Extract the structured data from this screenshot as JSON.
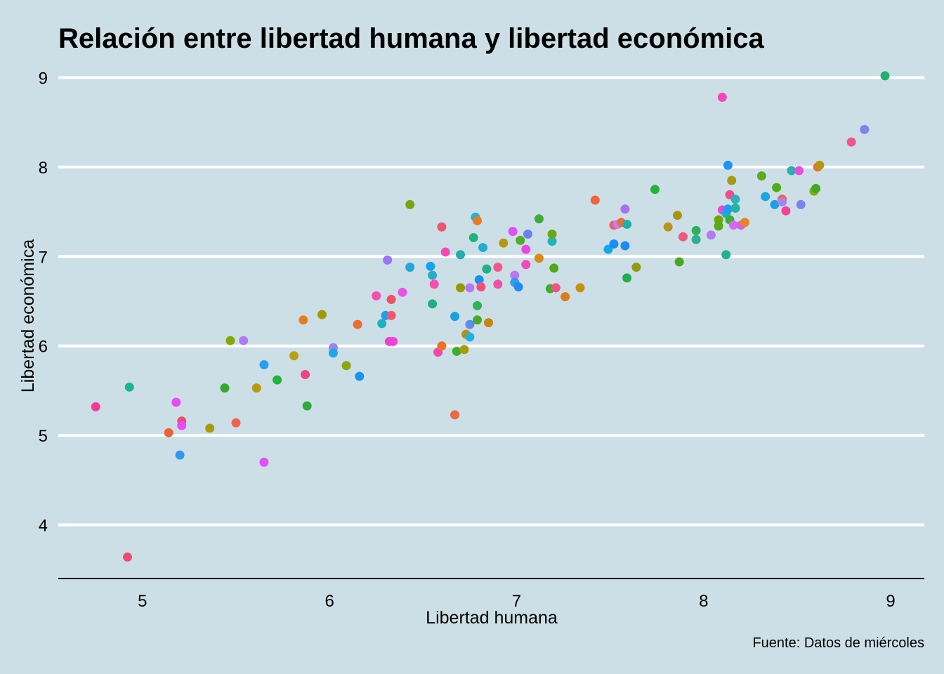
{
  "chart_data": {
    "type": "scatter",
    "title": "Relación entre libertad humana y libertad económica",
    "xlabel": "Libertad humana",
    "ylabel": "Libertad económica",
    "caption": "Fuente: Datos de miércoles",
    "xlim": [
      4.55,
      9.18
    ],
    "ylim": [
      3.4,
      9.2
    ],
    "xticks": [
      5,
      6,
      7,
      8,
      9
    ],
    "yticks": [
      4,
      5,
      6,
      7,
      8,
      9
    ],
    "grid": "horizontal major lines",
    "legend": "none",
    "colors": {
      "background": "#cddfe6",
      "gridline": "#ffffff",
      "axis": "#000000"
    },
    "points": [
      {
        "x": 4.75,
        "y": 5.32,
        "color": "#F8399C"
      },
      {
        "x": 4.92,
        "y": 3.64,
        "color": "#F1496F"
      },
      {
        "x": 4.93,
        "y": 5.54,
        "color": "#1BB794"
      },
      {
        "x": 5.14,
        "y": 5.03,
        "color": "#EE6037"
      },
      {
        "x": 5.18,
        "y": 5.37,
        "color": "#E84CF2"
      },
      {
        "x": 5.2,
        "y": 4.78,
        "color": "#3396F2"
      },
      {
        "x": 5.21,
        "y": 5.16,
        "color": "#F14A6B"
      },
      {
        "x": 5.21,
        "y": 5.11,
        "color": "#E44DF6"
      },
      {
        "x": 5.36,
        "y": 5.08,
        "color": "#A99B0E"
      },
      {
        "x": 5.44,
        "y": 5.53,
        "color": "#33A92D"
      },
      {
        "x": 5.47,
        "y": 6.06,
        "color": "#81A905"
      },
      {
        "x": 5.5,
        "y": 5.14,
        "color": "#F1624D"
      },
      {
        "x": 5.54,
        "y": 6.06,
        "color": "#B479F6"
      },
      {
        "x": 5.61,
        "y": 5.53,
        "color": "#B89A0D"
      },
      {
        "x": 5.65,
        "y": 4.7,
        "color": "#E152F0"
      },
      {
        "x": 5.65,
        "y": 5.79,
        "color": "#2B9FEF"
      },
      {
        "x": 5.72,
        "y": 5.62,
        "color": "#21B340"
      },
      {
        "x": 5.81,
        "y": 5.89,
        "color": "#B4A20E"
      },
      {
        "x": 5.86,
        "y": 6.29,
        "color": "#E97C1E"
      },
      {
        "x": 5.87,
        "y": 5.68,
        "color": "#F0467C"
      },
      {
        "x": 5.88,
        "y": 5.33,
        "color": "#2FAA3B"
      },
      {
        "x": 5.96,
        "y": 6.35,
        "color": "#A09A07"
      },
      {
        "x": 6.02,
        "y": 5.98,
        "color": "#9C83F0"
      },
      {
        "x": 6.02,
        "y": 5.92,
        "color": "#21A7E8"
      },
      {
        "x": 6.09,
        "y": 5.78,
        "color": "#8CA612"
      },
      {
        "x": 6.15,
        "y": 6.24,
        "color": "#EC6B2F"
      },
      {
        "x": 6.16,
        "y": 5.66,
        "color": "#1C91F6"
      },
      {
        "x": 6.25,
        "y": 6.56,
        "color": "#F44FB0"
      },
      {
        "x": 6.28,
        "y": 6.25,
        "color": "#1FB0C0"
      },
      {
        "x": 6.3,
        "y": 6.34,
        "color": "#1E9EF0"
      },
      {
        "x": 6.31,
        "y": 6.96,
        "color": "#9D74F3"
      },
      {
        "x": 6.32,
        "y": 6.05,
        "color": "#EE40D7"
      },
      {
        "x": 6.33,
        "y": 6.34,
        "color": "#F25669"
      },
      {
        "x": 6.33,
        "y": 6.52,
        "color": "#F24F69"
      },
      {
        "x": 6.34,
        "y": 6.05,
        "color": "#F540D0"
      },
      {
        "x": 6.39,
        "y": 6.6,
        "color": "#E953E7"
      },
      {
        "x": 6.43,
        "y": 6.88,
        "color": "#24A5DC"
      },
      {
        "x": 6.43,
        "y": 7.58,
        "color": "#74A710"
      },
      {
        "x": 6.54,
        "y": 6.89,
        "color": "#17A0F4"
      },
      {
        "x": 6.55,
        "y": 6.79,
        "color": "#29ACC7"
      },
      {
        "x": 6.55,
        "y": 6.47,
        "color": "#1EB07C"
      },
      {
        "x": 6.56,
        "y": 6.69,
        "color": "#F550AE"
      },
      {
        "x": 6.58,
        "y": 5.93,
        "color": "#F148AC"
      },
      {
        "x": 6.6,
        "y": 6.0,
        "color": "#EC7125"
      },
      {
        "x": 6.6,
        "y": 7.33,
        "color": "#F1536D"
      },
      {
        "x": 6.62,
        "y": 7.05,
        "color": "#F549B6"
      },
      {
        "x": 6.67,
        "y": 6.33,
        "color": "#1AA0DF"
      },
      {
        "x": 6.67,
        "y": 5.23,
        "color": "#EE6842"
      },
      {
        "x": 6.68,
        "y": 5.94,
        "color": "#39AE2F"
      },
      {
        "x": 6.7,
        "y": 6.65,
        "color": "#969904"
      },
      {
        "x": 6.7,
        "y": 7.02,
        "color": "#22AEAC"
      },
      {
        "x": 6.72,
        "y": 5.96,
        "color": "#A49D07"
      },
      {
        "x": 6.73,
        "y": 6.13,
        "color": "#BD8C11"
      },
      {
        "x": 6.75,
        "y": 6.1,
        "color": "#1DB2E2"
      },
      {
        "x": 6.75,
        "y": 6.24,
        "color": "#5B8CF2"
      },
      {
        "x": 6.75,
        "y": 6.65,
        "color": "#B577F5"
      },
      {
        "x": 6.77,
        "y": 7.21,
        "color": "#1CB47B"
      },
      {
        "x": 6.78,
        "y": 7.44,
        "color": "#22B3D6"
      },
      {
        "x": 6.79,
        "y": 6.29,
        "color": "#47AC2C"
      },
      {
        "x": 6.79,
        "y": 6.45,
        "color": "#32B156"
      },
      {
        "x": 6.79,
        "y": 7.4,
        "color": "#EB7B23"
      },
      {
        "x": 6.8,
        "y": 6.74,
        "color": "#1792EE"
      },
      {
        "x": 6.81,
        "y": 6.66,
        "color": "#F64D7F"
      },
      {
        "x": 6.82,
        "y": 7.1,
        "color": "#1FAFCD"
      },
      {
        "x": 6.84,
        "y": 6.86,
        "color": "#27AF83"
      },
      {
        "x": 6.85,
        "y": 6.26,
        "color": "#C7860C"
      },
      {
        "x": 6.9,
        "y": 6.88,
        "color": "#F5588E"
      },
      {
        "x": 6.9,
        "y": 6.69,
        "color": "#ED52A6"
      },
      {
        "x": 6.93,
        "y": 7.15,
        "color": "#B9960F"
      },
      {
        "x": 6.98,
        "y": 7.28,
        "color": "#E34FF0"
      },
      {
        "x": 6.99,
        "y": 6.79,
        "color": "#BB76F1"
      },
      {
        "x": 6.99,
        "y": 6.71,
        "color": "#2D9CEC"
      },
      {
        "x": 7.01,
        "y": 6.66,
        "color": "#2189F1"
      },
      {
        "x": 7.02,
        "y": 7.18,
        "color": "#4FAE23"
      },
      {
        "x": 7.05,
        "y": 6.91,
        "color": "#F249B6"
      },
      {
        "x": 7.05,
        "y": 7.08,
        "color": "#EE46E3"
      },
      {
        "x": 7.06,
        "y": 7.25,
        "color": "#6C7FF2"
      },
      {
        "x": 7.12,
        "y": 6.98,
        "color": "#D88B18"
      },
      {
        "x": 7.12,
        "y": 7.42,
        "color": "#3DAD36"
      },
      {
        "x": 7.18,
        "y": 6.64,
        "color": "#3EAC2C"
      },
      {
        "x": 7.19,
        "y": 7.17,
        "color": "#1FB3BC"
      },
      {
        "x": 7.19,
        "y": 7.25,
        "color": "#6DA70F"
      },
      {
        "x": 7.2,
        "y": 6.87,
        "color": "#4EA817"
      },
      {
        "x": 7.21,
        "y": 6.65,
        "color": "#F55088"
      },
      {
        "x": 7.26,
        "y": 6.55,
        "color": "#DE7A1B"
      },
      {
        "x": 7.34,
        "y": 6.65,
        "color": "#C5920F"
      },
      {
        "x": 7.42,
        "y": 7.63,
        "color": "#F2643C"
      },
      {
        "x": 7.49,
        "y": 7.08,
        "color": "#1AA6E5"
      },
      {
        "x": 7.52,
        "y": 7.14,
        "color": "#1690F6"
      },
      {
        "x": 7.52,
        "y": 7.35,
        "color": "#F45B70"
      },
      {
        "x": 7.54,
        "y": 7.36,
        "color": "#C27DF3"
      },
      {
        "x": 7.56,
        "y": 7.38,
        "color": "#EC6F30"
      },
      {
        "x": 7.58,
        "y": 7.53,
        "color": "#A770F1"
      },
      {
        "x": 7.58,
        "y": 7.12,
        "color": "#1F8CF3"
      },
      {
        "x": 7.59,
        "y": 6.76,
        "color": "#24AD4B"
      },
      {
        "x": 7.59,
        "y": 7.36,
        "color": "#1EAFAB"
      },
      {
        "x": 7.64,
        "y": 6.88,
        "color": "#969A13"
      },
      {
        "x": 7.74,
        "y": 7.75,
        "color": "#27B13C"
      },
      {
        "x": 7.81,
        "y": 7.33,
        "color": "#B7951C"
      },
      {
        "x": 7.86,
        "y": 7.46,
        "color": "#A99510"
      },
      {
        "x": 7.87,
        "y": 6.94,
        "color": "#48A81B"
      },
      {
        "x": 7.89,
        "y": 7.22,
        "color": "#F1577A"
      },
      {
        "x": 7.96,
        "y": 7.29,
        "color": "#2DB05E"
      },
      {
        "x": 7.96,
        "y": 7.19,
        "color": "#2FAF8A"
      },
      {
        "x": 8.04,
        "y": 7.24,
        "color": "#B37AF3"
      },
      {
        "x": 8.08,
        "y": 7.41,
        "color": "#76A00C"
      },
      {
        "x": 8.08,
        "y": 7.34,
        "color": "#56AA18"
      },
      {
        "x": 8.1,
        "y": 8.78,
        "color": "#F549B8"
      },
      {
        "x": 8.1,
        "y": 7.52,
        "color": "#F344D3"
      },
      {
        "x": 8.12,
        "y": 7.48,
        "color": "#1BB0D1"
      },
      {
        "x": 8.12,
        "y": 7.02,
        "color": "#22B18A"
      },
      {
        "x": 8.13,
        "y": 8.02,
        "color": "#1B96F6"
      },
      {
        "x": 8.13,
        "y": 7.53,
        "color": "#1B9CF1"
      },
      {
        "x": 8.14,
        "y": 7.69,
        "color": "#F04B8E"
      },
      {
        "x": 8.14,
        "y": 7.41,
        "color": "#3DAE2F"
      },
      {
        "x": 8.15,
        "y": 7.85,
        "color": "#A49B11"
      },
      {
        "x": 8.16,
        "y": 7.35,
        "color": "#D26BF1"
      },
      {
        "x": 8.17,
        "y": 7.64,
        "color": "#28B3BD"
      },
      {
        "x": 8.17,
        "y": 7.54,
        "color": "#25B2A3"
      },
      {
        "x": 8.2,
        "y": 7.35,
        "color": "#D95DEF"
      },
      {
        "x": 8.22,
        "y": 7.38,
        "color": "#E98322"
      },
      {
        "x": 8.31,
        "y": 7.9,
        "color": "#5DAA1B"
      },
      {
        "x": 8.33,
        "y": 7.67,
        "color": "#1AA6E3"
      },
      {
        "x": 8.38,
        "y": 7.58,
        "color": "#1BA0E6"
      },
      {
        "x": 8.39,
        "y": 7.77,
        "color": "#50AE17"
      },
      {
        "x": 8.42,
        "y": 7.64,
        "color": "#F1663C"
      },
      {
        "x": 8.42,
        "y": 7.61,
        "color": "#A584F2"
      },
      {
        "x": 8.44,
        "y": 7.51,
        "color": "#F3448F"
      },
      {
        "x": 8.47,
        "y": 7.96,
        "color": "#25B3AF"
      },
      {
        "x": 8.51,
        "y": 7.96,
        "color": "#E74EE8"
      },
      {
        "x": 8.52,
        "y": 7.58,
        "color": "#7B82EE"
      },
      {
        "x": 8.59,
        "y": 7.73,
        "color": "#7DAF10"
      },
      {
        "x": 8.6,
        "y": 7.76,
        "color": "#41AA24"
      },
      {
        "x": 8.61,
        "y": 8.0,
        "color": "#F26B3A"
      },
      {
        "x": 8.62,
        "y": 8.02,
        "color": "#B6960D"
      },
      {
        "x": 8.79,
        "y": 8.28,
        "color": "#F35292"
      },
      {
        "x": 8.86,
        "y": 8.42,
        "color": "#7D84F0"
      },
      {
        "x": 8.97,
        "y": 9.02,
        "color": "#22B16B"
      }
    ]
  }
}
